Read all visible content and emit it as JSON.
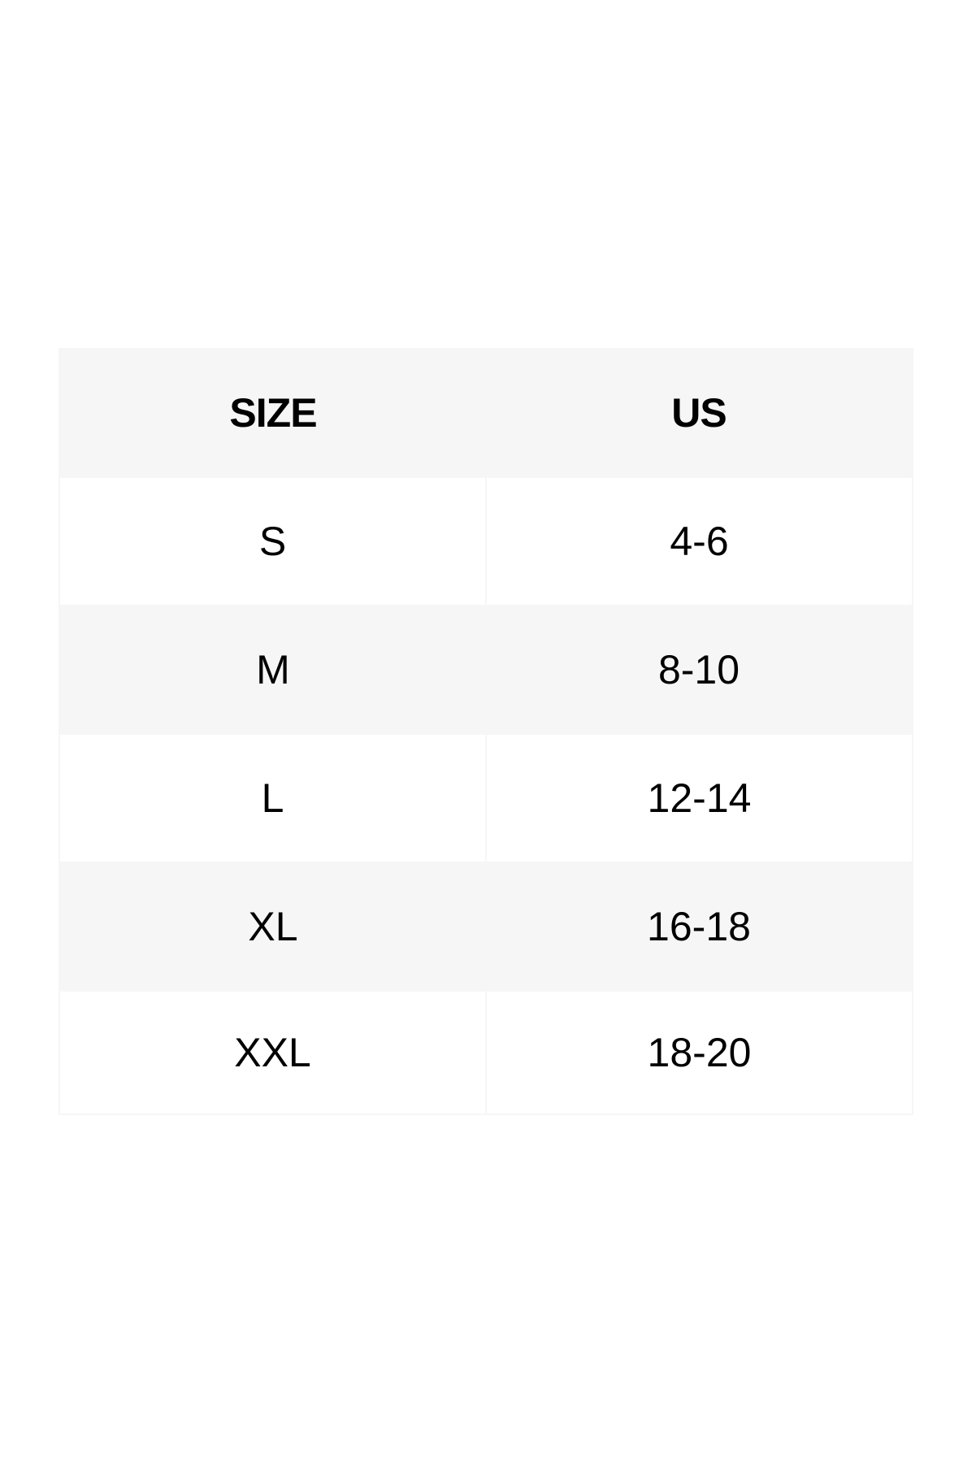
{
  "table": {
    "headers": [
      "SIZE",
      "US"
    ],
    "rows": [
      [
        "S",
        "4-6"
      ],
      [
        "M",
        "8-10"
      ],
      [
        "L",
        "12-14"
      ],
      [
        "XL",
        "16-18"
      ],
      [
        "XXL",
        "18-20"
      ]
    ]
  },
  "colors": {
    "stripe": "#f6f6f6",
    "background": "#ffffff",
    "text": "#000000"
  }
}
